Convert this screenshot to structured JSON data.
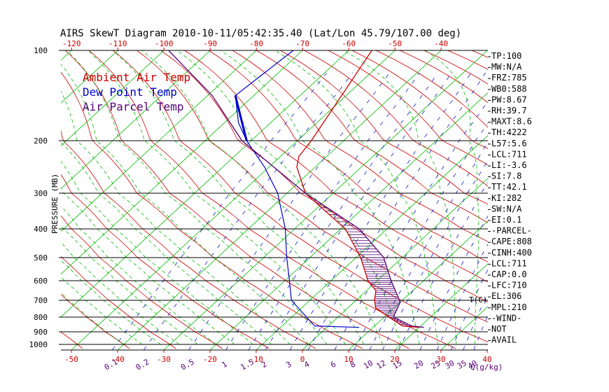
{
  "chart_data": {
    "type": "skewt",
    "title": "AIRS SkewT Diagram 2010-10-11/05:42:35.40 (Lat/Lon 45.79/107.00 deg)",
    "ylabel": "PRESSURE (MB)",
    "xlabel": "T(C)",
    "mixing_ratio_unit": "Q(g/kg)",
    "pressure_ticks": [
      100,
      200,
      300,
      400,
      500,
      600,
      700,
      800,
      900,
      1000
    ],
    "bottom_temp_ticks": [
      -50,
      -40,
      -30,
      -20,
      -10,
      0,
      10,
      20,
      30,
      40
    ],
    "top_temp_ticks": [
      -120,
      -110,
      -100,
      -90,
      -80,
      -70,
      -60,
      -50,
      -40
    ],
    "mixing_ratio_ticks": [
      "0.1",
      "0.2",
      "0.5",
      "1",
      "1.5",
      "2",
      "3",
      "4",
      "6",
      "8",
      "10",
      "12",
      "15",
      "20",
      "25",
      "30",
      "35",
      "40"
    ],
    "legend": [
      {
        "label": "Ambient Air Temp",
        "color": "#cc0000"
      },
      {
        "label": "Dew Point Temp",
        "color": "#0000cc"
      },
      {
        "label": "Air Parcel Temp",
        "color": "#550077"
      }
    ],
    "series": [
      {
        "name": "Ambient Air Temp",
        "color": "#cc0000",
        "points": [
          [
            870,
            20
          ],
          [
            860,
            16
          ],
          [
            800,
            11
          ],
          [
            745,
            6
          ],
          [
            700,
            4
          ],
          [
            650,
            2
          ],
          [
            600,
            -2
          ],
          [
            500,
            -9
          ],
          [
            400,
            -19
          ],
          [
            300,
            -36
          ],
          [
            250,
            -44
          ],
          [
            230,
            -46
          ],
          [
            200,
            -47
          ],
          [
            150,
            -51
          ],
          [
            100,
            -55
          ]
        ]
      },
      {
        "name": "Dew Point Temp",
        "color": "#0000cc",
        "points": [
          [
            870,
            7
          ],
          [
            860,
            -3
          ],
          [
            700,
            -14
          ],
          [
            600,
            -19
          ],
          [
            500,
            -25
          ],
          [
            400,
            -32
          ],
          [
            300,
            -42
          ],
          [
            250,
            -51
          ],
          [
            200,
            -61
          ],
          [
            180,
            -67
          ],
          [
            150,
            -74
          ],
          [
            100,
            -72
          ]
        ]
      },
      {
        "name": "Air Parcel Temp",
        "color": "#550077",
        "points": [
          [
            870,
            21
          ],
          [
            860,
            18
          ],
          [
            800,
            12
          ],
          [
            711,
            10
          ],
          [
            600,
            3
          ],
          [
            500,
            -4
          ],
          [
            400,
            -16
          ],
          [
            300,
            -36
          ],
          [
            250,
            -49
          ],
          [
            200,
            -62
          ],
          [
            150,
            -79
          ],
          [
            100,
            -99
          ]
        ]
      }
    ]
  },
  "indices": [
    "TP:100",
    "MW:N/A",
    "FRZ:785",
    "WB0:588",
    "PW:8.67",
    "RH:39.7",
    "MAXT:8.6",
    "TH:4222",
    "L57:5.6",
    "LCL:711",
    "LI:-3.6",
    "SI:7.8",
    "TT:42.1",
    "KI:282",
    "SW:N/A",
    "EI:0.1",
    "-PARCEL-",
    "CAPE:808",
    "CINH:400",
    "LCL:711",
    "CAP:0.0",
    "LFC:710",
    "EL:306",
    "MPL:210",
    "-WIND-",
    "NOT",
    "AVAIL"
  ],
  "colors": {
    "dry_adiabat": "#cc0000",
    "moist_adiabat": "#00bb00",
    "isotherm": "#00bb00",
    "mixing_ratio": "#2a2ad0",
    "isobar": "#000000",
    "cape_hatch": "#550077"
  }
}
